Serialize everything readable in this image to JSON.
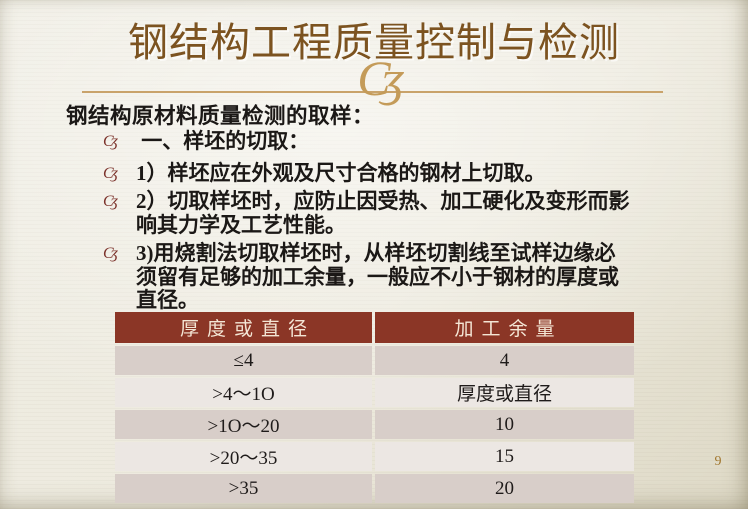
{
  "slide": {
    "title": "钢结构工程质量控制与检测",
    "page_number": "9",
    "intro": "钢结构原材料质量检测的取样：",
    "ornament_glyph": "Cʒ",
    "bullet_marker_glyph": "Cʒ",
    "bullets": [
      {
        "lines": [
          " 一、样坯的切取："
        ]
      },
      {
        "lines": [
          "1）样坯应在外观及尺寸合格的钢材上切取。"
        ]
      },
      {
        "lines": [
          "2）切取样坯时，应防止因受热、加工硬化及变形而影",
          "响其力学及工艺性能。"
        ]
      },
      {
        "lines": [
          "3)用烧割法切取样坯时，从样坯切割线至试样边缘必",
          "须留有足够的加工余量，一般应不小于钢材的厚度或",
          "直径。"
        ]
      }
    ],
    "table": {
      "headers": [
        "厚度或直径",
        "加工余量"
      ],
      "rows": [
        [
          "≤4",
          "4"
        ],
        [
          ">4～1O",
          "厚度或直径"
        ],
        [
          ">1O～20",
          "10"
        ],
        [
          ">20～35",
          "15"
        ],
        [
          ">35",
          "20"
        ]
      ]
    },
    "colors": {
      "title_brown": "#7c5320",
      "ornament_gold": "#c49b59",
      "divider_tan": "#c9a36b",
      "bullet_maroon": "#7b312a",
      "table_header_bg": "#8b3626",
      "table_header_text": "#f4e6d5",
      "row_dark": "#d8cec9",
      "row_light": "#ece7e3",
      "page_number": "#a1772f",
      "background_cream": "#edeade"
    }
  }
}
